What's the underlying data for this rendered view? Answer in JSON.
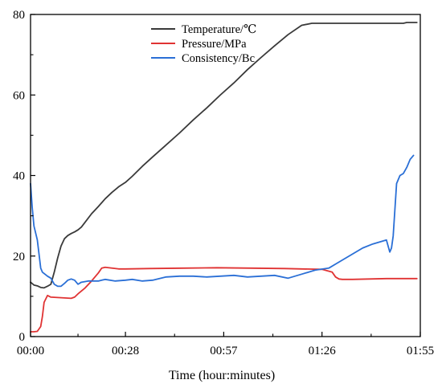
{
  "chart_data": {
    "type": "line",
    "title": "",
    "xlabel": "Time (hour:minutes)",
    "ylabel": "",
    "xlim_minutes": [
      0,
      115
    ],
    "ylim": [
      0,
      80
    ],
    "x_ticks": [
      {
        "minutes": 0,
        "label": "00:00"
      },
      {
        "minutes": 28,
        "label": "00:28"
      },
      {
        "minutes": 57,
        "label": "00:57"
      },
      {
        "minutes": 86,
        "label": "01:26"
      },
      {
        "minutes": 115,
        "label": "01:55"
      }
    ],
    "y_ticks": [
      0,
      20,
      40,
      60,
      80
    ],
    "grid": false,
    "legend_position": "top-center",
    "series": [
      {
        "name": "Temperature/℃",
        "color": "#3a3a3a",
        "points": [
          [
            0,
            13.5
          ],
          [
            1,
            12.8
          ],
          [
            2,
            12.6
          ],
          [
            3,
            12.2
          ],
          [
            4,
            12.1
          ],
          [
            5,
            12.5
          ],
          [
            6,
            13.0
          ],
          [
            7,
            16.0
          ],
          [
            8,
            19.5
          ],
          [
            9,
            22.5
          ],
          [
            10,
            24.3
          ],
          [
            11,
            25.1
          ],
          [
            12,
            25.6
          ],
          [
            13,
            26.0
          ],
          [
            14,
            26.5
          ],
          [
            15,
            27.2
          ],
          [
            16,
            28.3
          ],
          [
            18,
            30.5
          ],
          [
            20,
            32.3
          ],
          [
            22,
            34.2
          ],
          [
            24,
            35.8
          ],
          [
            26,
            37.2
          ],
          [
            28,
            38.3
          ],
          [
            30,
            39.8
          ],
          [
            33,
            42.3
          ],
          [
            36,
            44.6
          ],
          [
            40,
            47.6
          ],
          [
            44,
            50.6
          ],
          [
            48,
            53.8
          ],
          [
            52,
            56.8
          ],
          [
            56,
            60.0
          ],
          [
            60,
            63.0
          ],
          [
            64,
            66.3
          ],
          [
            68,
            69.3
          ],
          [
            72,
            72.2
          ],
          [
            76,
            75.0
          ],
          [
            80,
            77.3
          ],
          [
            83,
            77.8
          ],
          [
            85,
            77.8
          ],
          [
            90,
            77.8
          ],
          [
            95,
            77.8
          ],
          [
            100,
            77.8
          ],
          [
            108,
            77.8
          ],
          [
            110,
            77.8
          ],
          [
            111,
            78.0
          ],
          [
            114,
            78.0
          ]
        ]
      },
      {
        "name": "Pressure/MPa",
        "color": "#e03333",
        "points": [
          [
            0,
            1.2
          ],
          [
            1,
            1.2
          ],
          [
            2,
            1.3
          ],
          [
            3,
            2.5
          ],
          [
            3.5,
            5.0
          ],
          [
            4,
            8.5
          ],
          [
            5,
            10.2
          ],
          [
            6,
            9.8
          ],
          [
            8,
            9.7
          ],
          [
            10,
            9.6
          ],
          [
            12,
            9.5
          ],
          [
            13,
            9.8
          ],
          [
            14,
            10.6
          ],
          [
            16,
            12.0
          ],
          [
            18,
            13.8
          ],
          [
            20,
            15.8
          ],
          [
            21,
            17.0
          ],
          [
            22,
            17.2
          ],
          [
            24,
            17.0
          ],
          [
            26,
            16.8
          ],
          [
            28,
            16.8
          ],
          [
            35,
            16.9
          ],
          [
            45,
            17.0
          ],
          [
            55,
            17.1
          ],
          [
            65,
            17.0
          ],
          [
            75,
            16.9
          ],
          [
            80,
            16.8
          ],
          [
            86,
            16.7
          ],
          [
            89,
            16.0
          ],
          [
            90,
            14.8
          ],
          [
            91,
            14.3
          ],
          [
            92,
            14.2
          ],
          [
            95,
            14.2
          ],
          [
            100,
            14.3
          ],
          [
            105,
            14.4
          ],
          [
            110,
            14.4
          ],
          [
            114,
            14.4
          ]
        ]
      },
      {
        "name": "Consistency/Bc",
        "color": "#2a6fd6",
        "points": [
          [
            0,
            38.0
          ],
          [
            0.5,
            32.0
          ],
          [
            1,
            27.5
          ],
          [
            2,
            24.0
          ],
          [
            3,
            17.0
          ],
          [
            3.5,
            16.0
          ],
          [
            5,
            15.0
          ],
          [
            6,
            14.5
          ],
          [
            7,
            13.0
          ],
          [
            8,
            12.5
          ],
          [
            9,
            12.5
          ],
          [
            10,
            13.2
          ],
          [
            11,
            14.0
          ],
          [
            12,
            14.3
          ],
          [
            13,
            14.0
          ],
          [
            14,
            13.0
          ],
          [
            15,
            13.5
          ],
          [
            17,
            13.8
          ],
          [
            20,
            13.8
          ],
          [
            22,
            14.2
          ],
          [
            25,
            13.8
          ],
          [
            28,
            14.0
          ],
          [
            30,
            14.2
          ],
          [
            33,
            13.8
          ],
          [
            36,
            14.0
          ],
          [
            40,
            14.8
          ],
          [
            44,
            15.0
          ],
          [
            48,
            15.0
          ],
          [
            52,
            14.8
          ],
          [
            56,
            15.0
          ],
          [
            60,
            15.2
          ],
          [
            64,
            14.8
          ],
          [
            68,
            15.0
          ],
          [
            72,
            15.2
          ],
          [
            76,
            14.5
          ],
          [
            80,
            15.5
          ],
          [
            84,
            16.5
          ],
          [
            88,
            17.0
          ],
          [
            90,
            18.0
          ],
          [
            92,
            19.0
          ],
          [
            95,
            20.5
          ],
          [
            98,
            22.0
          ],
          [
            101,
            23.0
          ],
          [
            103,
            23.5
          ],
          [
            105,
            24.0
          ],
          [
            105.5,
            22.5
          ],
          [
            106,
            21.0
          ],
          [
            106.5,
            22.0
          ],
          [
            107,
            25.0
          ],
          [
            108,
            38.0
          ],
          [
            109,
            40.0
          ],
          [
            110,
            40.5
          ],
          [
            111,
            42.0
          ],
          [
            112,
            44.0
          ],
          [
            113,
            45.0
          ]
        ]
      }
    ]
  }
}
